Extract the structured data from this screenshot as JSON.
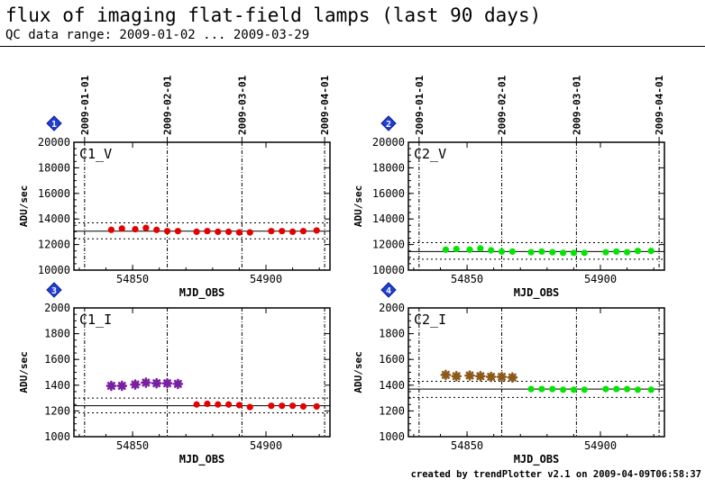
{
  "header": {
    "title": "flux of imaging flat-field lamps (last 90 days)",
    "subtitle": "QC data range: 2009-01-02 ... 2009-03-29"
  },
  "footer": {
    "credit": "created by trendPlotter v2.1 on 2009-04-09T06:58:37"
  },
  "colors": {
    "red": "#e60000",
    "green": "#00e600",
    "purple": "#7a1fa2",
    "brown": "#8b5a1a",
    "badge": "#1f3fd6"
  },
  "date_ticks": {
    "labels": [
      "2009-01-01",
      "2009-02-01",
      "2009-03-01",
      "2009-04-01"
    ],
    "mjd": [
      54832,
      54863,
      54891,
      54922
    ]
  },
  "chart_data": [
    {
      "type": "scatter",
      "badge": "1",
      "label": "C1_V",
      "xlabel": "MJD_OBS",
      "ylabel": "ADU/sec",
      "xlim": [
        54828,
        54924
      ],
      "ylim": [
        10000,
        20000
      ],
      "yticks": [
        10000,
        12000,
        14000,
        16000,
        18000,
        20000
      ],
      "xticks": [
        54850,
        54900
      ],
      "ref_line": 13050,
      "tolerance": [
        12450,
        13700
      ],
      "series": [
        {
          "color": "red",
          "marker": "circle",
          "x": [
            54842,
            54846,
            54851,
            54855,
            54859,
            54863,
            54867,
            54874,
            54878,
            54882,
            54886,
            54890,
            54894,
            54902,
            54906,
            54910,
            54914,
            54919
          ],
          "y": [
            13150,
            13250,
            13200,
            13300,
            13150,
            13050,
            13050,
            13000,
            13050,
            13000,
            13000,
            12950,
            12950,
            13050,
            13050,
            13000,
            13050,
            13100
          ]
        }
      ]
    },
    {
      "type": "scatter",
      "badge": "2",
      "label": "C2_V",
      "xlabel": "MJD_OBS",
      "ylabel": "ADU/sec",
      "xlim": [
        54828,
        54924
      ],
      "ylim": [
        10000,
        20000
      ],
      "yticks": [
        10000,
        12000,
        14000,
        16000,
        18000,
        20000
      ],
      "xticks": [
        54850,
        54900
      ],
      "ref_line": 11450,
      "tolerance": [
        10850,
        12150
      ],
      "series": [
        {
          "color": "green",
          "marker": "circle",
          "x": [
            54842,
            54846,
            54851,
            54855,
            54859,
            54863,
            54867,
            54874,
            54878,
            54882,
            54886,
            54890,
            54894,
            54902,
            54906,
            54910,
            54914,
            54919
          ],
          "y": [
            11600,
            11650,
            11600,
            11700,
            11550,
            11450,
            11450,
            11400,
            11450,
            11400,
            11350,
            11350,
            11350,
            11400,
            11450,
            11400,
            11500,
            11500
          ]
        }
      ]
    },
    {
      "type": "scatter",
      "badge": "3",
      "label": "C1_I",
      "xlabel": "MJD_OBS",
      "ylabel": "ADU/sec",
      "xlim": [
        54828,
        54924
      ],
      "ylim": [
        1000,
        2000
      ],
      "yticks": [
        1000,
        1200,
        1400,
        1600,
        1800,
        2000
      ],
      "xticks": [
        54850,
        54900
      ],
      "ref_line": 1240,
      "tolerance": [
        1185,
        1300
      ],
      "series": [
        {
          "color": "purple",
          "marker": "star",
          "x": [
            54842,
            54846,
            54851,
            54855,
            54859,
            54863,
            54867
          ],
          "y": [
            1395,
            1395,
            1405,
            1420,
            1415,
            1415,
            1410
          ]
        },
        {
          "color": "red",
          "marker": "circle",
          "x": [
            54874,
            54878,
            54882,
            54886,
            54890,
            54894,
            54902,
            54906,
            54910,
            54914,
            54919
          ],
          "y": [
            1250,
            1255,
            1250,
            1250,
            1245,
            1230,
            1240,
            1240,
            1240,
            1235,
            1235
          ]
        }
      ]
    },
    {
      "type": "scatter",
      "badge": "4",
      "label": "C2_I",
      "xlabel": "MJD_OBS",
      "ylabel": "ADU/sec",
      "xlim": [
        54828,
        54924
      ],
      "ylim": [
        1000,
        2000
      ],
      "yticks": [
        1000,
        1200,
        1400,
        1600,
        1800,
        2000
      ],
      "xticks": [
        54850,
        54900
      ],
      "ref_line": 1370,
      "tolerance": [
        1305,
        1430
      ],
      "series": [
        {
          "color": "brown",
          "marker": "star",
          "x": [
            54842,
            54846,
            54851,
            54855,
            54859,
            54863,
            54867
          ],
          "y": [
            1480,
            1470,
            1475,
            1470,
            1465,
            1465,
            1460
          ]
        },
        {
          "color": "green",
          "marker": "circle",
          "x": [
            54874,
            54878,
            54882,
            54886,
            54890,
            54894,
            54902,
            54906,
            54910,
            54914,
            54919
          ],
          "y": [
            1370,
            1370,
            1370,
            1365,
            1365,
            1365,
            1370,
            1370,
            1370,
            1365,
            1365
          ]
        }
      ]
    }
  ]
}
